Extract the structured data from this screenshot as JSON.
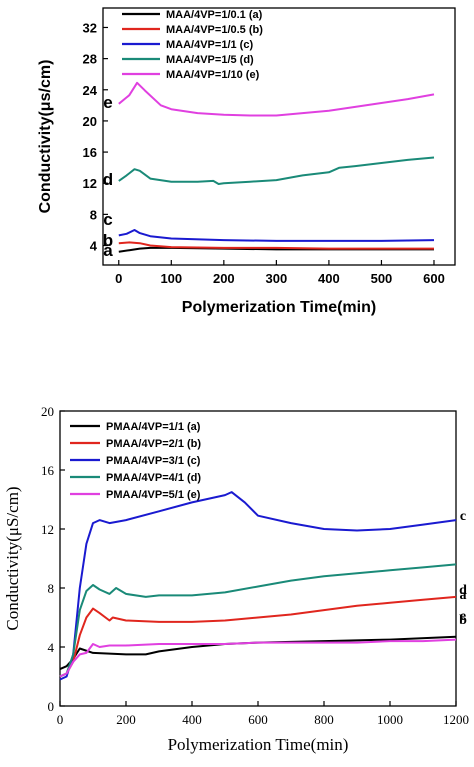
{
  "chart_data": [
    {
      "type": "line",
      "xlabel": "Polymerization Time(min)",
      "ylabel": "Conductivity(μs/cm)",
      "xlim": [
        -30,
        640
      ],
      "ylim": [
        1.5,
        34.5
      ],
      "xticks": [
        0,
        100,
        200,
        300,
        400,
        500,
        600
      ],
      "yticks": [
        4,
        8,
        12,
        16,
        20,
        24,
        28,
        32
      ],
      "legend_position": "top-left",
      "series": [
        {
          "name": "MAA/4VP=1/0.1 (a)",
          "end_label": "a",
          "color": "#000000",
          "x": [
            0,
            20,
            40,
            60,
            100,
            200,
            300,
            400,
            500,
            600
          ],
          "y": [
            3.2,
            3.4,
            3.6,
            3.7,
            3.7,
            3.6,
            3.5,
            3.5,
            3.5,
            3.5
          ]
        },
        {
          "name": "MAA/4VP=1/0.5 (b)",
          "end_label": "b",
          "color": "#e0261e",
          "x": [
            0,
            20,
            40,
            60,
            100,
            200,
            300,
            400,
            500,
            600
          ],
          "y": [
            4.3,
            4.4,
            4.3,
            4.0,
            3.8,
            3.7,
            3.7,
            3.6,
            3.6,
            3.6
          ]
        },
        {
          "name": "MAA/4VP=1/1 (c)",
          "end_label": "c",
          "color": "#1a1ad0",
          "x": [
            0,
            15,
            30,
            40,
            60,
            100,
            200,
            300,
            400,
            500,
            600
          ],
          "y": [
            5.3,
            5.5,
            6.0,
            5.6,
            5.2,
            4.9,
            4.7,
            4.6,
            4.6,
            4.6,
            4.7
          ]
        },
        {
          "name": "MAA/4VP=1/5 (d)",
          "end_label": "d",
          "color": "#1a8a78",
          "x": [
            0,
            15,
            30,
            40,
            60,
            100,
            150,
            180,
            190,
            200,
            250,
            300,
            350,
            400,
            420,
            450,
            500,
            550,
            600
          ],
          "y": [
            12.3,
            13.0,
            13.8,
            13.6,
            12.6,
            12.2,
            12.2,
            12.3,
            11.9,
            12.0,
            12.2,
            12.4,
            13.0,
            13.4,
            14.0,
            14.2,
            14.6,
            15.0,
            15.3
          ]
        },
        {
          "name": "MAA/4VP=1/10 (e)",
          "end_label": "e",
          "color": "#e040e0",
          "x": [
            0,
            20,
            35,
            50,
            80,
            100,
            150,
            200,
            250,
            300,
            350,
            400,
            450,
            500,
            550,
            600
          ],
          "y": [
            22.2,
            23.3,
            24.9,
            23.9,
            22.0,
            21.5,
            21.0,
            20.8,
            20.7,
            20.7,
            21.0,
            21.3,
            21.8,
            22.3,
            22.8,
            23.4
          ]
        }
      ]
    },
    {
      "type": "line",
      "xlabel": "Polymerization Time(min)",
      "ylabel": "Conductivity(μS/cm)",
      "xlim": [
        0,
        1200
      ],
      "ylim": [
        0,
        20
      ],
      "xticks": [
        0,
        200,
        400,
        600,
        800,
        1000,
        1200
      ],
      "yticks": [
        0,
        4,
        8,
        12,
        16,
        20
      ],
      "legend_position": "top-left",
      "series": [
        {
          "name": "PMAA/4VP=1/1 (a)",
          "end_label": "a",
          "color": "#000000",
          "x": [
            0,
            20,
            40,
            60,
            100,
            200,
            260,
            300,
            400,
            500,
            600,
            800,
            1000,
            1200
          ],
          "y": [
            2.5,
            2.7,
            3.2,
            3.9,
            3.6,
            3.5,
            3.5,
            3.7,
            4.0,
            4.2,
            4.3,
            4.4,
            4.5,
            4.7
          ]
        },
        {
          "name": "PMAA/4VP=2/1 (b)",
          "end_label": "b",
          "color": "#e0261e",
          "x": [
            0,
            20,
            40,
            60,
            80,
            100,
            120,
            150,
            160,
            200,
            300,
            400,
            500,
            600,
            700,
            800,
            900,
            1000,
            1100,
            1200
          ],
          "y": [
            2.0,
            2.2,
            3.0,
            4.8,
            6.0,
            6.6,
            6.3,
            5.8,
            6.0,
            5.8,
            5.7,
            5.7,
            5.8,
            6.0,
            6.2,
            6.5,
            6.8,
            7.0,
            7.2,
            7.4
          ]
        },
        {
          "name": "PMAA/4VP=3/1 (c)",
          "end_label": "c",
          "color": "#1a1ad0",
          "x": [
            0,
            20,
            40,
            60,
            80,
            100,
            120,
            150,
            200,
            300,
            400,
            500,
            520,
            560,
            600,
            700,
            800,
            900,
            1000,
            1100,
            1200
          ],
          "y": [
            1.8,
            2.0,
            3.5,
            8.0,
            11.0,
            12.4,
            12.6,
            12.4,
            12.6,
            13.2,
            13.8,
            14.3,
            14.5,
            13.8,
            12.9,
            12.4,
            12.0,
            11.9,
            12.0,
            12.3,
            12.6
          ]
        },
        {
          "name": "PMAA/4VP=4/1 (d)",
          "end_label": "d",
          "color": "#1a8a78",
          "x": [
            0,
            20,
            40,
            60,
            80,
            100,
            120,
            150,
            170,
            200,
            260,
            300,
            400,
            500,
            600,
            700,
            800,
            900,
            1000,
            1100,
            1200
          ],
          "y": [
            2.0,
            2.2,
            3.5,
            6.5,
            7.8,
            8.2,
            7.9,
            7.6,
            8.0,
            7.6,
            7.4,
            7.5,
            7.5,
            7.7,
            8.1,
            8.5,
            8.8,
            9.0,
            9.2,
            9.4,
            9.6
          ]
        },
        {
          "name": "PMAA/4VP=5/1 (e)",
          "end_label": "e",
          "color": "#e040e0",
          "x": [
            0,
            20,
            40,
            60,
            80,
            100,
            120,
            150,
            200,
            300,
            400,
            500,
            600,
            700,
            800,
            900,
            1000,
            1100,
            1200
          ],
          "y": [
            2.0,
            2.2,
            3.0,
            3.5,
            3.6,
            4.2,
            4.0,
            4.1,
            4.1,
            4.2,
            4.2,
            4.2,
            4.3,
            4.3,
            4.3,
            4.3,
            4.4,
            4.4,
            4.5
          ]
        }
      ]
    }
  ]
}
